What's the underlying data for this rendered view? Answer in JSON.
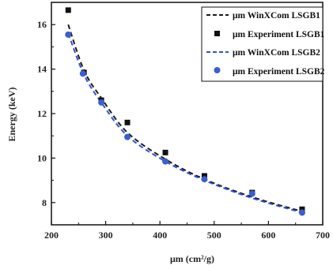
{
  "chart_data": {
    "type": "scatter",
    "xlabel": "μm (cm²/g)",
    "ylabel": "Energy (keV)",
    "xlim": [
      200,
      700
    ],
    "ylim": [
      7.0,
      17.0
    ],
    "x_ticks": [
      200,
      300,
      400,
      500,
      600,
      700
    ],
    "y_ticks": [
      8,
      10,
      12,
      14,
      16
    ],
    "x_tick_labels": [
      "200",
      "300",
      "400",
      "500",
      "600",
      "700"
    ],
    "y_tick_labels": [
      "8",
      "10",
      "12",
      "14",
      "16"
    ],
    "grid": false,
    "legend_position": "top-right",
    "series": [
      {
        "name": "μm WinXCom LSGB1",
        "kind": "line",
        "style": "dashed",
        "color": "#1a1a1a",
        "x": [
          231,
          260,
          292,
          340,
          410,
          482,
          570,
          662
        ],
        "y": [
          16.0,
          13.95,
          12.7,
          11.15,
          9.95,
          9.05,
          8.25,
          7.6
        ]
      },
      {
        "name": "μm Experiment LSGB1",
        "kind": "markers",
        "marker": "square",
        "color": "#111111",
        "x": [
          231,
          260,
          292,
          340,
          410,
          482,
          570,
          662
        ],
        "y": [
          16.65,
          13.85,
          12.6,
          11.6,
          10.25,
          9.2,
          8.45,
          7.7
        ]
      },
      {
        "name": "μm WinXCom LSGB2",
        "kind": "line",
        "style": "dashed",
        "color": "#2f50d8",
        "x": [
          231,
          260,
          292,
          340,
          410,
          482,
          570,
          662
        ],
        "y": [
          15.6,
          13.75,
          12.5,
          11.0,
          9.85,
          9.0,
          8.2,
          7.55
        ]
      },
      {
        "name": "μm Experiment LSGB2",
        "kind": "markers",
        "marker": "circle",
        "color": "#3a5fd0",
        "x": [
          231,
          258,
          292,
          340,
          410,
          482,
          570,
          662
        ],
        "y": [
          15.55,
          13.8,
          12.5,
          10.95,
          9.85,
          9.05,
          8.4,
          7.55
        ]
      }
    ]
  }
}
